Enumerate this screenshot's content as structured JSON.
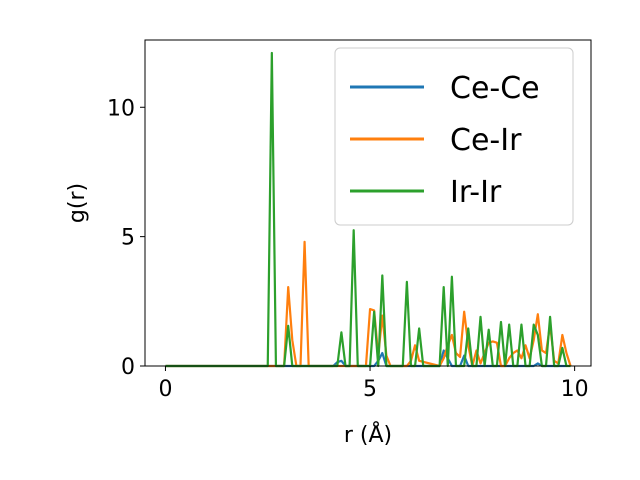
{
  "chart_data": {
    "type": "line",
    "title": "",
    "xlabel": "r (Å)",
    "ylabel": "g(r)",
    "xlim": [
      -0.5,
      10.4
    ],
    "ylim": [
      0,
      12.6
    ],
    "xticks": [
      0,
      5,
      10
    ],
    "yticks": [
      0,
      5,
      10
    ],
    "grid": false,
    "legend_position": "upper-right",
    "series": [
      {
        "name": "Ce-Ce",
        "color": "#1f77b4",
        "x": [
          0,
          4.1,
          4.2,
          4.3,
          4.4,
          5.1,
          5.2,
          5.3,
          5.4,
          6.7,
          6.8,
          6.9,
          7.0,
          7.2,
          7.3,
          7.4,
          9.0,
          9.1,
          9.2,
          9.8
        ],
        "y": [
          0,
          0,
          0.15,
          0.2,
          0,
          0,
          0.2,
          0.5,
          0,
          0,
          0.6,
          0.3,
          0,
          0,
          0.4,
          0,
          0,
          0.1,
          0,
          0
        ]
      },
      {
        "name": "Ce-Ir",
        "color": "#ff7f0e",
        "x": [
          0,
          2.8,
          2.9,
          3.0,
          3.1,
          3.2,
          3.3,
          3.4,
          3.5,
          4.8,
          4.9,
          5.0,
          5.1,
          5.2,
          5.3,
          5.4,
          5.5,
          5.9,
          6.0,
          6.1,
          6.2,
          6.7,
          6.8,
          6.9,
          7.0,
          7.1,
          7.2,
          7.3,
          7.4,
          7.5,
          7.6,
          7.7,
          7.8,
          7.9,
          8.0,
          8.1,
          8.2,
          8.3,
          8.4,
          8.5,
          8.6,
          8.7,
          8.8,
          8.9,
          9.0,
          9.1,
          9.2,
          9.3,
          9.4,
          9.5,
          9.6,
          9.7,
          9.8,
          9.9
        ],
        "y": [
          0,
          0,
          0,
          3.05,
          1.0,
          0,
          0,
          4.8,
          0,
          0,
          0,
          2.2,
          2.15,
          0.4,
          1.95,
          0.4,
          0,
          0,
          0.2,
          0.8,
          0.2,
          0,
          0.3,
          0.8,
          1.2,
          0.5,
          0.35,
          2.1,
          0.8,
          0,
          0.6,
          0.1,
          0.5,
          0.9,
          0.95,
          0.9,
          0,
          0,
          0.3,
          0.5,
          0.6,
          0.3,
          0.8,
          0.3,
          1.0,
          2.0,
          0.6,
          0.5,
          1.6,
          0.2,
          0.1,
          1.2,
          0.5,
          0
        ]
      },
      {
        "name": "Ir-Ir",
        "color": "#2ca02c",
        "x": [
          0,
          2.5,
          2.6,
          2.7,
          2.9,
          3.0,
          3.1,
          3.2,
          4.2,
          4.3,
          4.4,
          4.5,
          4.6,
          4.7,
          4.9,
          5.0,
          5.1,
          5.2,
          5.3,
          5.4,
          5.8,
          5.9,
          6.0,
          6.1,
          6.2,
          6.3,
          6.6,
          6.7,
          6.8,
          6.9,
          7.0,
          7.1,
          7.2,
          7.3,
          7.4,
          7.5,
          7.6,
          7.7,
          7.8,
          7.9,
          8.0,
          8.1,
          8.2,
          8.3,
          8.4,
          8.5,
          8.6,
          8.7,
          8.8,
          8.9,
          9.0,
          9.1,
          9.2,
          9.3,
          9.4,
          9.5,
          9.6,
          9.7,
          9.8,
          9.9
        ],
        "y": [
          0,
          0,
          12.1,
          0,
          0,
          1.55,
          0,
          0,
          0,
          1.3,
          0,
          0,
          5.25,
          0,
          0,
          0,
          2.1,
          0,
          3.5,
          0,
          0,
          3.25,
          0,
          0,
          1.45,
          0,
          0,
          0,
          3.05,
          0,
          3.45,
          0,
          0,
          0,
          1.45,
          0,
          0,
          1.9,
          0,
          1.4,
          0,
          0,
          1.7,
          0,
          1.6,
          0,
          0,
          1.6,
          0,
          0,
          1.6,
          1.2,
          0,
          0,
          1.9,
          0,
          0,
          0.7,
          0,
          0
        ]
      }
    ]
  }
}
